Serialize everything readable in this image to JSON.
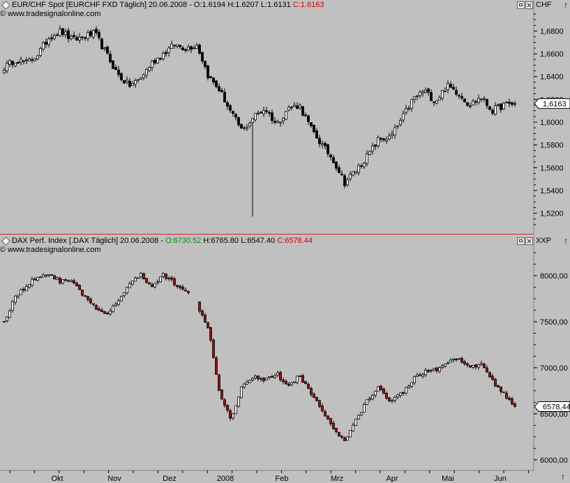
{
  "chart_data": [
    {
      "type": "candlestick",
      "title": "EUR/CHF Spot [EURCHF FXD  Täglich] 20.06.2008",
      "ohlc_readout": {
        "open": "O:1.6194",
        "high": "H:1.6207",
        "low": "L:1.6131",
        "close": "C:1.6163"
      },
      "unit": "CHF",
      "watermark": "www.tradesignalonline.com",
      "ylim": [
        1.505,
        1.695
      ],
      "ticks": [
        "1,6800",
        "1,6600",
        "1,6400",
        "1,6200",
        "1,6000",
        "1,5800",
        "1,5600",
        "1,5400",
        "1,5200"
      ],
      "tick_values": [
        1.68,
        1.66,
        1.64,
        1.62,
        1.6,
        1.58,
        1.56,
        1.54,
        1.52
      ],
      "last_value_label": "1,6163",
      "last_value": 1.6163,
      "close_path": [
        1.648,
        1.655,
        1.652,
        1.66,
        1.675,
        1.68,
        1.672,
        1.675,
        1.678,
        1.66,
        1.642,
        1.632,
        1.638,
        1.652,
        1.66,
        1.668,
        1.665,
        1.668,
        1.64,
        1.628,
        1.608,
        1.592,
        1.605,
        1.612,
        1.598,
        1.612,
        1.615,
        1.595,
        1.58,
        1.567,
        1.547,
        1.558,
        1.57,
        1.585,
        1.586,
        1.602,
        1.62,
        1.628,
        1.618,
        1.632,
        1.626,
        1.615,
        1.622,
        1.61,
        1.615,
        1.6163
      ],
      "wick_events": [
        {
          "index": 89,
          "low": 1.517
        }
      ]
    },
    {
      "type": "candlestick",
      "title": "DAX Perf. Index [.DAX  Täglich] 20.06.2008",
      "ohlc_readout": {
        "open": "O:6730.52",
        "high": "H:6765.80",
        "low": "L:6547.40",
        "close": "C:6578.44"
      },
      "unit": "XXP",
      "watermark": "www.tradesignalonline.com",
      "ylim": [
        5900,
        8280
      ],
      "ticks": [
        "8000,00",
        "7500,00",
        "7000,00",
        "6500,00",
        "6000,00"
      ],
      "tick_values": [
        8000,
        7500,
        7000,
        6500,
        6000
      ],
      "last_value_label": "6578,44",
      "last_value": 6578.44,
      "close_path": [
        7500,
        7780,
        7890,
        8000,
        8020,
        7930,
        7960,
        7780,
        7650,
        7560,
        7720,
        7900,
        8010,
        7880,
        8010,
        7920,
        7850,
        7690,
        7440,
        6720,
        6450,
        6820,
        6910,
        6870,
        6940,
        6780,
        6930,
        6720,
        6560,
        6330,
        6200,
        6430,
        6650,
        6780,
        6650,
        6720,
        6870,
        6960,
        6980,
        7040,
        7100,
        6990,
        7050,
        6860,
        6720,
        6580
      ]
    }
  ],
  "x_axis": {
    "labels": [
      "Okt",
      "Nov",
      "Dez",
      "2008",
      "Feb",
      "Mrz",
      "Apr",
      "Mai",
      "Jun"
    ]
  }
}
